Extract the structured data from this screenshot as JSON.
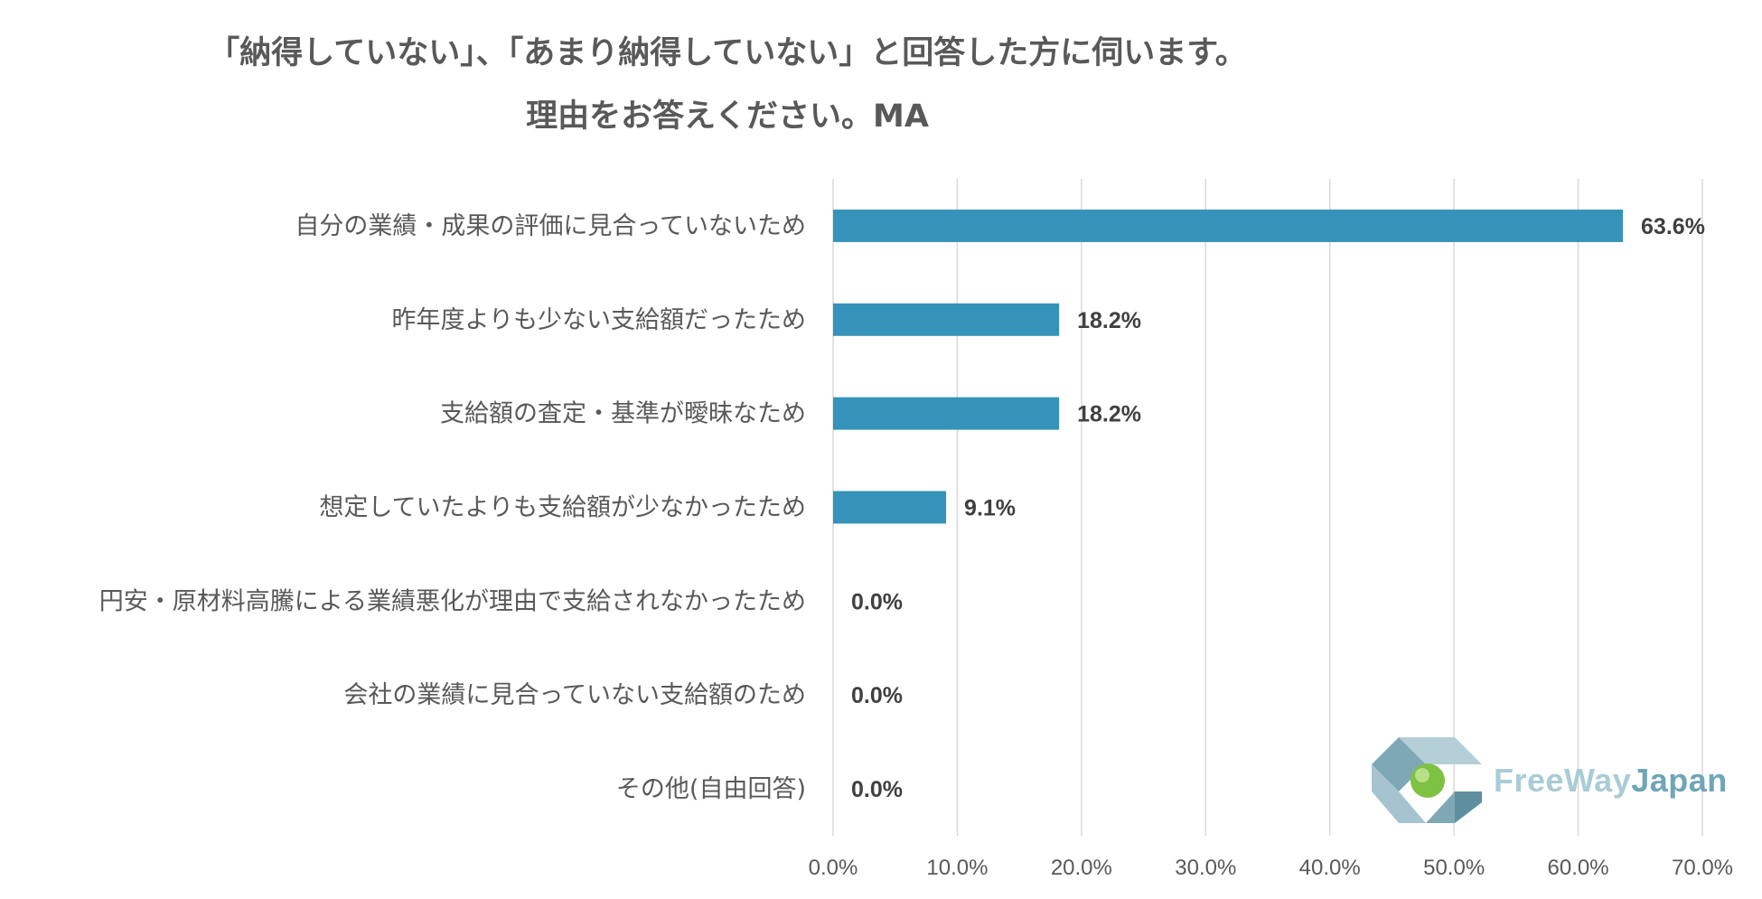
{
  "title": {
    "line1": "「納得していない」、「あまり納得していない」と回答した方に伺います。",
    "line2": "理由をお答えください。MA"
  },
  "chart_data": {
    "type": "bar",
    "orientation": "horizontal",
    "categories": [
      "自分の業績・成果の評価に見合っていないため",
      "昨年度よりも少ない支給額だったため",
      "支給額の査定・基準が曖昧なため",
      "想定していたよりも支給額が少なかったため",
      "円安・原材料高騰による業績悪化が理由で支給されなかったため",
      "会社の業績に見合っていない支給額のため",
      "その他(自由回答)"
    ],
    "values": [
      63.6,
      18.2,
      18.2,
      9.1,
      0.0,
      0.0,
      0.0
    ],
    "data_labels": [
      "63.6%",
      "18.2%",
      "18.2%",
      "9.1%",
      "0.0%",
      "0.0%",
      "0.0%"
    ],
    "xlim": [
      0,
      70
    ],
    "xticks": [
      0,
      10,
      20,
      30,
      40,
      50,
      60,
      70
    ],
    "xtick_labels": [
      "0.0%",
      "10.0%",
      "20.0%",
      "30.0%",
      "40.0%",
      "50.0%",
      "60.0%",
      "70.0%"
    ],
    "grid": true,
    "bar_color": "#3593b9",
    "grid_color": "#d9d9d9"
  },
  "logo": {
    "text_part1": "FreeWay",
    "text_part2": "Japan",
    "icon": "freewayjapan-logo-icon"
  }
}
